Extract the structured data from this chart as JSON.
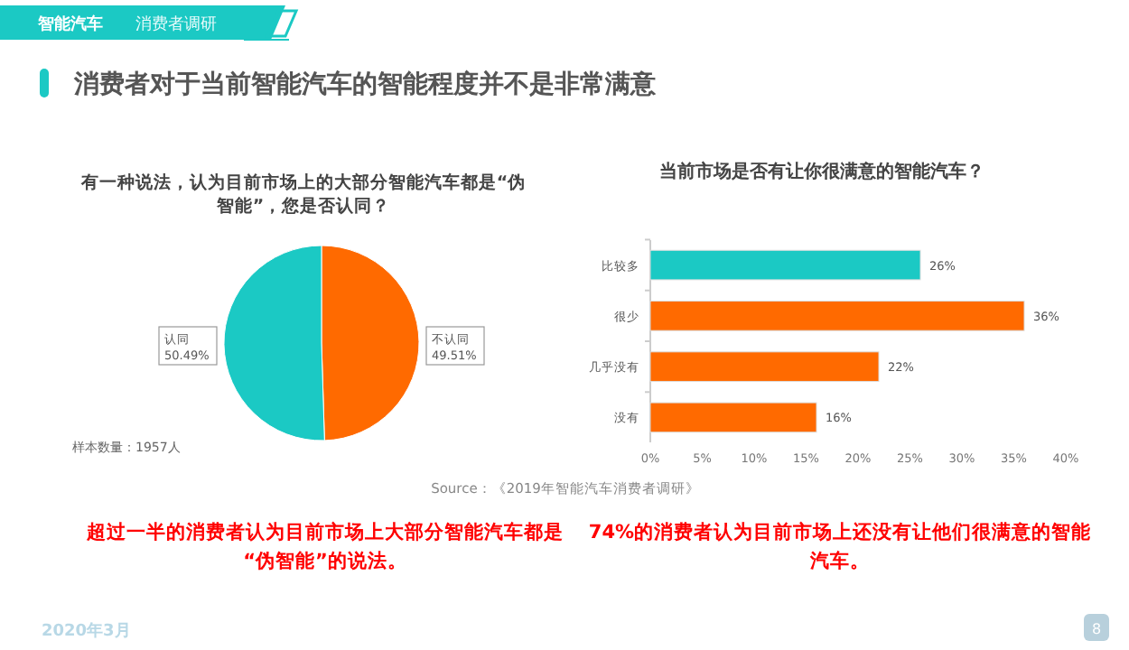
{
  "chart_data": [
    {
      "type": "other",
      "title": "消费者对于当前智能汽车的智能程度并不是非常满意",
      "annotations": [
        "智能汽车",
        "消费者调研",
        "2020年3月",
        "8"
      ]
    },
    {
      "type": "pie",
      "title": "有一种说法，认为目前市场上的大部分智能汽车都是“伪智能”，您是否认同？",
      "categories": [
        "不认同",
        "认同"
      ],
      "values": [
        49.51,
        50.49
      ],
      "colors": [
        "#ff6a00",
        "#1bc9c4"
      ],
      "value_labels": [
        "49.51%",
        "50.49%"
      ],
      "annotations": [
        "样本数量：1957人",
        "超过一半的消费者认为目前市场上大部分智能汽车都是“伪智能”的说法。"
      ]
    },
    {
      "type": "bar",
      "orientation": "horizontal",
      "title": "当前市场是否有让你很满意的智能汽车？",
      "categories": [
        "比较多",
        "很少",
        "几乎没有",
        "没有"
      ],
      "values": [
        26,
        36,
        22,
        16
      ],
      "colors": [
        "#1bc9c4",
        "#ff6a00",
        "#ff6a00",
        "#ff6a00"
      ],
      "value_labels": [
        "26%",
        "36%",
        "22%",
        "16%"
      ],
      "xlim": [
        0,
        40
      ],
      "xticks": [
        {
          "value": 0,
          "label": "0%"
        },
        {
          "value": 5,
          "label": "5%"
        },
        {
          "value": 10,
          "label": "10%"
        },
        {
          "value": 15,
          "label": "15%"
        },
        {
          "value": 20,
          "label": "20%"
        },
        {
          "value": 25,
          "label": "25%"
        },
        {
          "value": 30,
          "label": "30%"
        },
        {
          "value": 35,
          "label": "35%"
        },
        {
          "value": 40,
          "label": "40%"
        }
      ],
      "grid": false,
      "annotations": [
        "Source：《2019年智能汽车消费者调研》",
        "74%的消费者认为目前市场上还没有让他们很满意的智能汽车。"
      ]
    }
  ]
}
